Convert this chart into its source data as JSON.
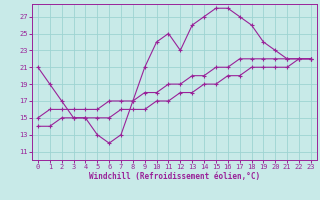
{
  "curve1_x": [
    0,
    1,
    2,
    3,
    4,
    5,
    6,
    7,
    8,
    9,
    10,
    11,
    12,
    13,
    14,
    15,
    16,
    17,
    18,
    19,
    20,
    21,
    22,
    23
  ],
  "curve1_y": [
    21,
    19,
    17,
    15,
    15,
    13,
    12,
    13,
    17,
    21,
    24,
    25,
    23,
    26,
    27,
    28,
    28,
    27,
    26,
    24,
    23,
    22,
    22,
    22
  ],
  "curve2_x": [
    0,
    1,
    2,
    3,
    4,
    5,
    6,
    7,
    8,
    9,
    10,
    11,
    12,
    13,
    14,
    15,
    16,
    17,
    18,
    19,
    20,
    21,
    22,
    23
  ],
  "curve2_y": [
    15,
    16,
    16,
    16,
    16,
    16,
    17,
    17,
    17,
    18,
    18,
    19,
    19,
    20,
    20,
    21,
    21,
    22,
    22,
    22,
    22,
    22,
    22,
    22
  ],
  "curve3_x": [
    0,
    1,
    2,
    3,
    4,
    5,
    6,
    7,
    8,
    9,
    10,
    11,
    12,
    13,
    14,
    15,
    16,
    17,
    18,
    19,
    20,
    21,
    22,
    23
  ],
  "curve3_y": [
    14,
    14,
    15,
    15,
    15,
    15,
    15,
    16,
    16,
    16,
    17,
    17,
    18,
    18,
    19,
    19,
    20,
    20,
    21,
    21,
    21,
    21,
    22,
    22
  ],
  "line_color": "#992299",
  "marker_color": "#992299",
  "bg_color": "#C8EAE8",
  "grid_color": "#9DD4D2",
  "xlabel": "Windchill (Refroidissement éolien,°C)",
  "xlim": [
    -0.5,
    23.5
  ],
  "ylim": [
    10.0,
    28.5
  ],
  "yticks": [
    11,
    13,
    15,
    17,
    19,
    21,
    23,
    25,
    27
  ],
  "xticks": [
    0,
    1,
    2,
    3,
    4,
    5,
    6,
    7,
    8,
    9,
    10,
    11,
    12,
    13,
    14,
    15,
    16,
    17,
    18,
    19,
    20,
    21,
    22,
    23
  ]
}
